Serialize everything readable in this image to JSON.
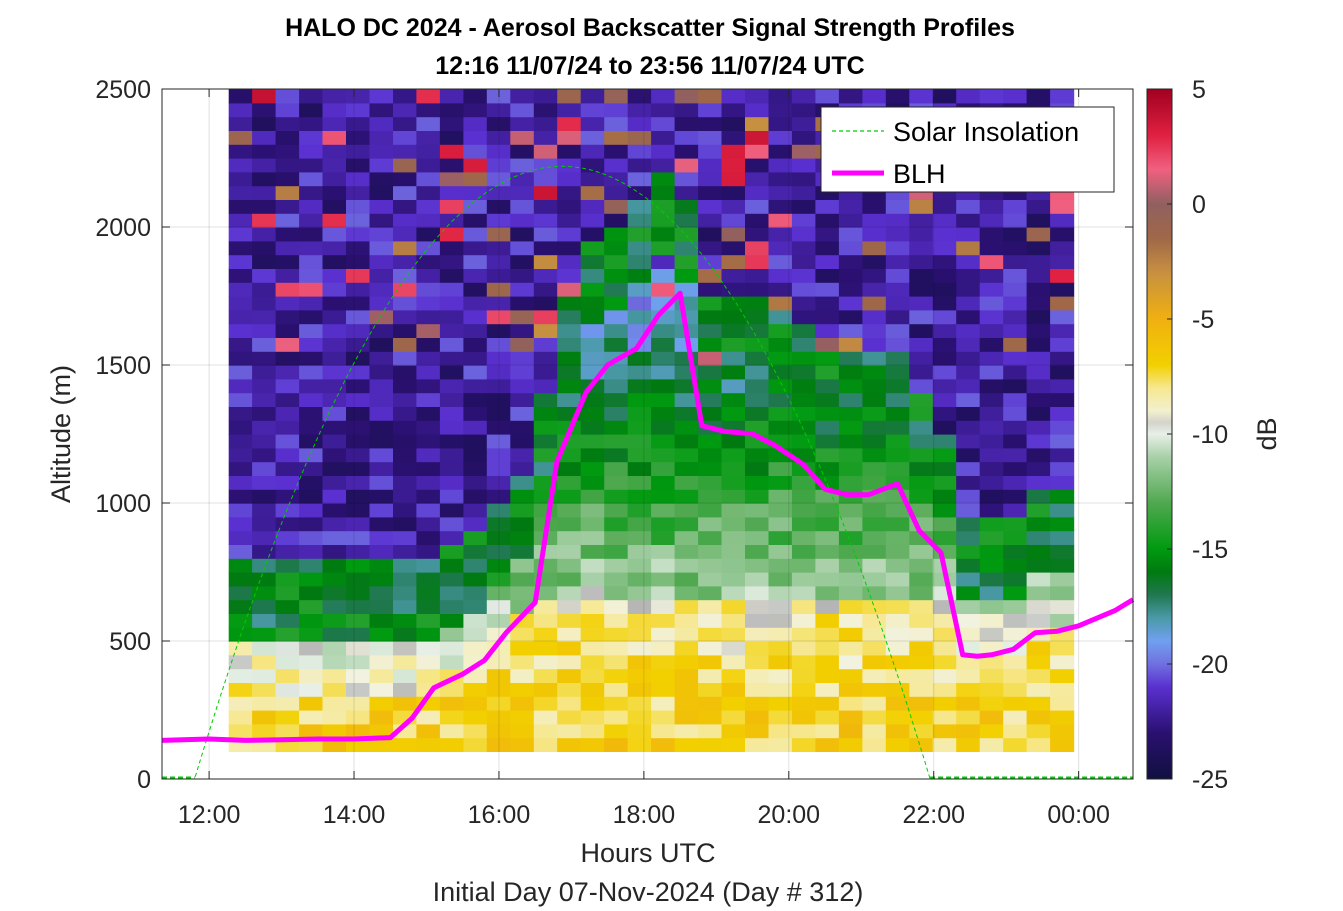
{
  "chart_data": {
    "type": "heatmap",
    "title": "HALO DC 2024 - Aerosol Backscatter Signal Strength Profiles",
    "subtitle": "12:16 11/07/24 to 23:56 11/07/24  UTC",
    "xlabel": "Hours UTC",
    "xlabel2": "Initial Day 07-Nov-2024 (Day # 312)",
    "ylabel": "Altitude (m)",
    "colorbar_label": "dB",
    "xlim_hours": [
      11.35,
      24.75
    ],
    "ylim": [
      0,
      2500
    ],
    "xticks": [
      12,
      14,
      16,
      18,
      20,
      22,
      24
    ],
    "xtick_labels": [
      "12:00",
      "14:00",
      "16:00",
      "18:00",
      "20:00",
      "22:00",
      "00:00"
    ],
    "yticks": [
      0,
      500,
      1000,
      1500,
      2000,
      2500
    ],
    "ytick_labels": [
      "0",
      "500",
      "1000",
      "1500",
      "2000",
      "2500"
    ],
    "clim": [
      -25,
      5
    ],
    "cticks": [
      -25,
      -20,
      -15,
      -10,
      -5,
      0,
      5
    ],
    "ctick_labels": [
      "-25",
      "-20",
      "-15",
      "-10",
      "-5",
      "0",
      "5"
    ],
    "grid": true,
    "legend_position": "top-right",
    "legend": [
      {
        "name": "Solar Insolation",
        "color": "#00cc00",
        "style": "dashed"
      },
      {
        "name": "BLH",
        "color": "#ff00ff",
        "style": "solid"
      }
    ],
    "heatmap": {
      "time_start_hours": 12.27,
      "time_end_hours": 23.93,
      "altitude_start_m": 100,
      "altitude_end_m": 2500,
      "altitude_step_m": 50,
      "description_levels": "Approximate backscatter dB per altitude band"
    },
    "blh_series": {
      "name": "BLH",
      "x_hours": [
        11.35,
        12.0,
        12.5,
        13.0,
        13.5,
        14.0,
        14.5,
        14.8,
        15.1,
        15.5,
        15.8,
        16.1,
        16.5,
        16.8,
        17.2,
        17.5,
        17.9,
        18.2,
        18.5,
        18.8,
        19.1,
        19.5,
        19.8,
        20.2,
        20.5,
        20.8,
        21.1,
        21.5,
        21.8,
        22.1,
        22.4,
        22.6,
        22.8,
        23.1,
        23.4,
        23.7,
        24.0,
        24.5,
        24.75
      ],
      "y_m": [
        140,
        145,
        140,
        142,
        145,
        145,
        150,
        220,
        330,
        380,
        430,
        530,
        640,
        1150,
        1400,
        1500,
        1560,
        1680,
        1760,
        1280,
        1260,
        1250,
        1210,
        1140,
        1050,
        1030,
        1030,
        1070,
        900,
        820,
        450,
        445,
        450,
        470,
        530,
        535,
        555,
        610,
        650
      ]
    },
    "solar_series": {
      "name": "Solar Insolation",
      "rise_hours": 11.8,
      "set_hours": 21.95,
      "peak_m": 2220
    }
  }
}
